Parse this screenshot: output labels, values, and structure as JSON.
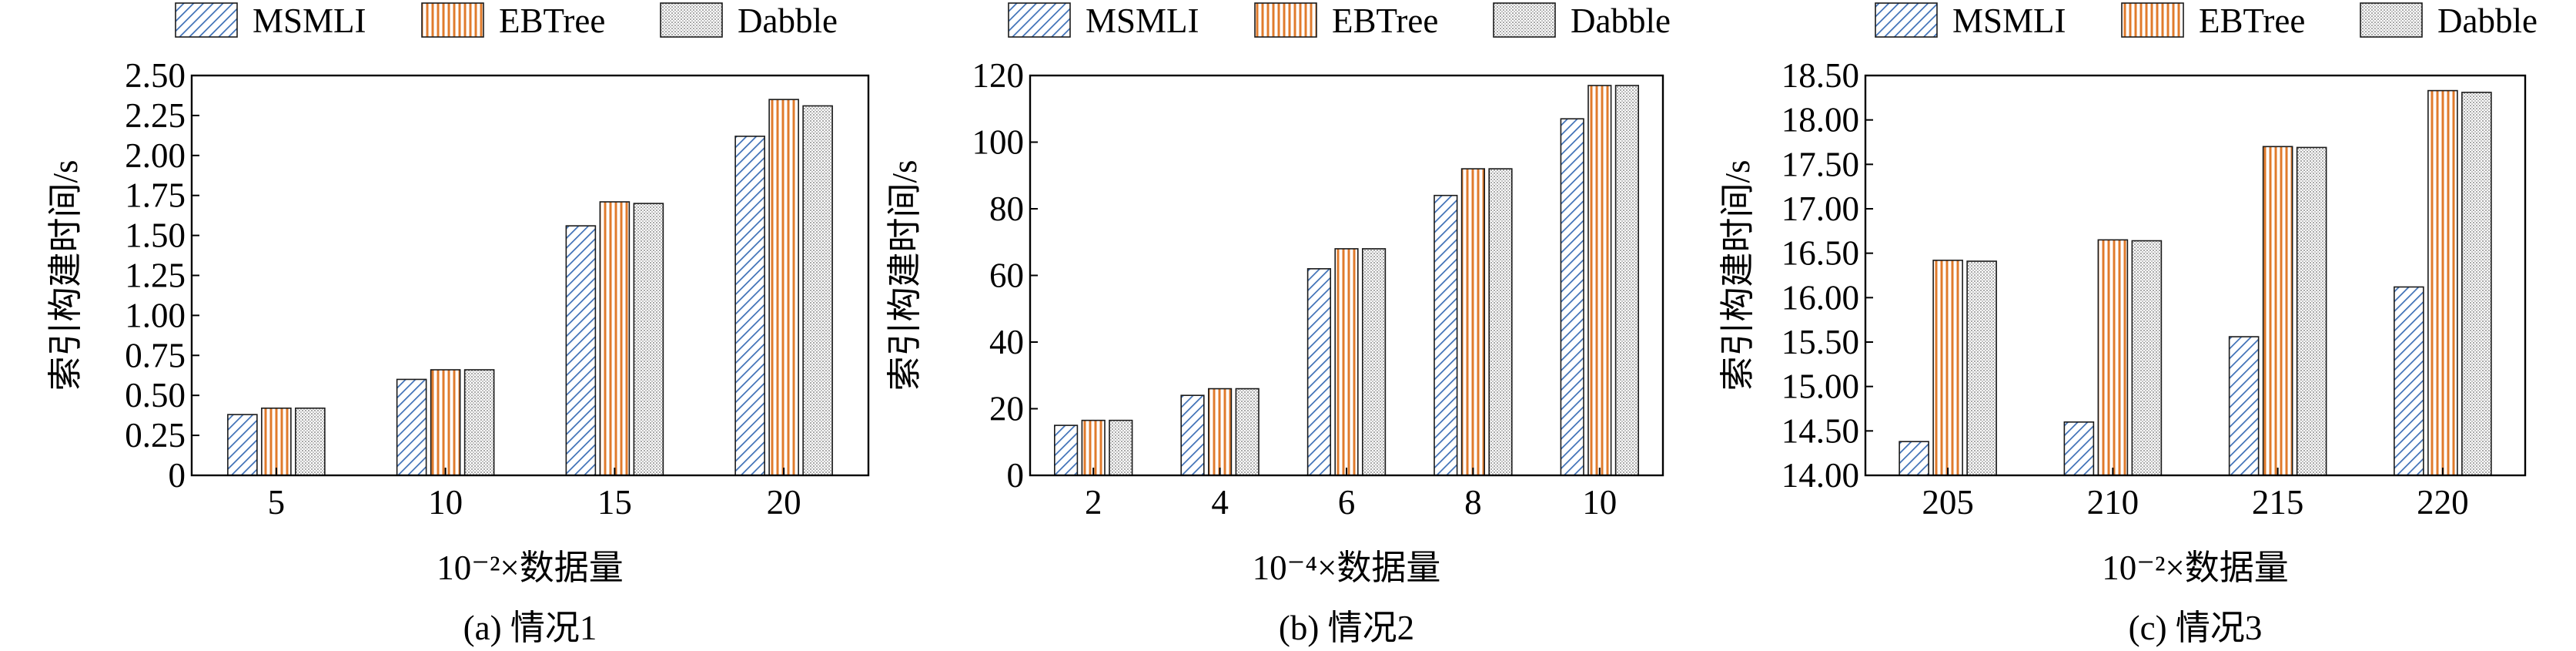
{
  "chart_data": [
    {
      "type": "bar",
      "title": "(a) 情况1",
      "xlabel": "10⁻²×数据量",
      "ylabel": "索引构建时间/s",
      "categories": [
        "5",
        "10",
        "15",
        "20"
      ],
      "ylim": [
        0,
        2.5
      ],
      "yticks": [
        "0",
        "0.25",
        "0.50",
        "0.75",
        "1.00",
        "1.25",
        "1.50",
        "1.75",
        "2.00",
        "2.25",
        "2.50"
      ],
      "series": [
        {
          "name": "MSMLI",
          "values": [
            0.38,
            0.6,
            1.56,
            2.12
          ]
        },
        {
          "name": "EBTree",
          "values": [
            0.42,
            0.66,
            1.71,
            2.35
          ]
        },
        {
          "name": "Dabble",
          "values": [
            0.42,
            0.66,
            1.7,
            2.31
          ]
        }
      ],
      "legend": "top"
    },
    {
      "type": "bar",
      "title": "(b) 情况2",
      "xlabel": "10⁻⁴×数据量",
      "ylabel": "索引构建时间/s",
      "categories": [
        "2",
        "4",
        "6",
        "8",
        "10"
      ],
      "ylim": [
        0,
        120
      ],
      "yticks": [
        "0",
        "20",
        "40",
        "60",
        "80",
        "100",
        "120"
      ],
      "series": [
        {
          "name": "MSMLI",
          "values": [
            15,
            24,
            62,
            84,
            107
          ]
        },
        {
          "name": "EBTree",
          "values": [
            16.5,
            26,
            68,
            92,
            117
          ]
        },
        {
          "name": "Dabble",
          "values": [
            16.5,
            26,
            68,
            92,
            117
          ]
        }
      ],
      "legend": "top"
    },
    {
      "type": "bar",
      "title": "(c) 情况3",
      "xlabel": "10⁻²×数据量",
      "ylabel": "索引构建时间/s",
      "categories": [
        "205",
        "210",
        "215",
        "220"
      ],
      "ylim": [
        14.0,
        18.5
      ],
      "yticks": [
        "14.00",
        "14.50",
        "15.00",
        "15.50",
        "16.00",
        "16.50",
        "17.00",
        "17.50",
        "18.00",
        "18.50"
      ],
      "series": [
        {
          "name": "MSMLI",
          "values": [
            14.38,
            14.6,
            15.56,
            16.12
          ]
        },
        {
          "name": "EBTree",
          "values": [
            16.42,
            16.65,
            17.7,
            18.33
          ]
        },
        {
          "name": "Dabble",
          "values": [
            16.41,
            16.64,
            17.69,
            18.31
          ]
        }
      ],
      "legend": "top"
    }
  ],
  "colors": {
    "MSMLI": "#3d6fb6",
    "EBTree": "#e07b2c",
    "Dabble": "#8a8a8a"
  },
  "patterns": {
    "MSMLI": "diagonal-hatch",
    "EBTree": "vertical-stripes",
    "Dabble": "crosshatch-fine"
  }
}
